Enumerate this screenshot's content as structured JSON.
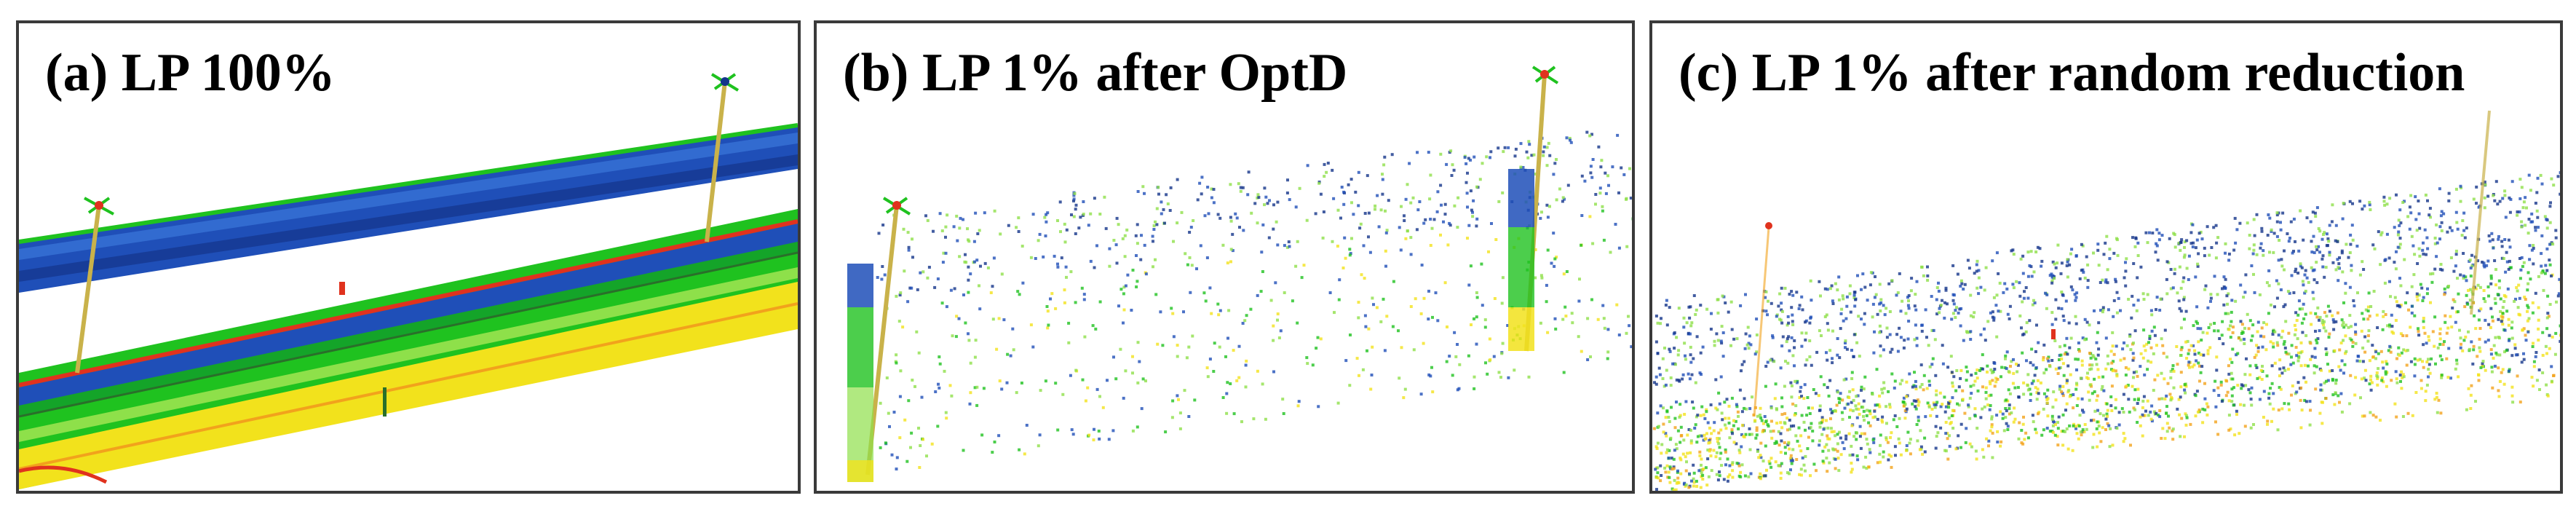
{
  "panels": [
    {
      "id": "a",
      "title": "(a) LP 100%"
    },
    {
      "id": "b",
      "title": "(b) LP 1% after OptD"
    },
    {
      "id": "c",
      "title": "(c) LP 1% after random reduction"
    }
  ],
  "palette": {
    "blue": "#1f4fb8",
    "dark_blue": "#14358a",
    "green": "#1fc21f",
    "light_green": "#8ee04a",
    "yellow": "#f2e21c",
    "orange": "#f2a21c",
    "red": "#e0321e",
    "pole": "#c9b24a"
  }
}
